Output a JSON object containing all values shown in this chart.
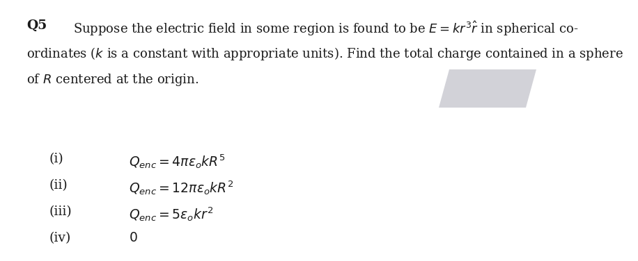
{
  "bg_color": "#ffffff",
  "fig_width": 9.16,
  "fig_height": 3.76,
  "dpi": 100,
  "question_number": "Q5",
  "question_text_line1": "Suppose the electric field in some region is found to be $E = kr^3\\hat{r}$ in spherical co-",
  "question_text_line2": "ordinates ($k$ is a constant with appropriate units). Find the total charge contained in a sphere",
  "question_text_line3": "of $R$ centered at the origin.",
  "options": [
    {
      "label": "(i)",
      "formula": "$Q_{enc} = 4\\pi\\varepsilon_o kR^5$"
    },
    {
      "label": "(ii)",
      "formula": "$Q_{enc} = 12\\pi\\varepsilon_o kR^2$"
    },
    {
      "label": "(iii)",
      "formula": "$Q_{enc} = 5\\varepsilon_o kr^2$"
    },
    {
      "label": "(iv)",
      "formula": "$0$"
    }
  ],
  "main_font_size": 13.0,
  "option_font_size": 13.5,
  "q_label_font_size": 13.5,
  "text_color": "#1a1a1a",
  "shadow_color": "#c0c0c8",
  "shadow_alpha": 0.7
}
